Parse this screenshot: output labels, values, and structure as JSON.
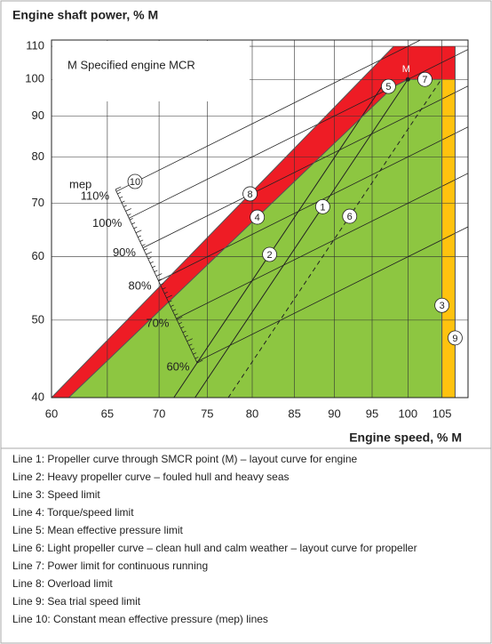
{
  "chart_data": {
    "type": "layout-diagram",
    "title": "Engine shaft power, % M",
    "x_label": "Engine speed, % M",
    "x_scale": "log",
    "y_scale": "log",
    "grid": true,
    "xlim": [
      60,
      109
    ],
    "ylim": [
      40,
      112
    ],
    "xticks": [
      60,
      65,
      70,
      75,
      80,
      85,
      90,
      95,
      100,
      105
    ],
    "yticks": [
      40,
      50,
      60,
      70,
      80,
      90,
      100,
      110
    ],
    "box_text": "M  Specified engine MCR",
    "mcr": {
      "label": "M",
      "x": 100,
      "y": 100
    },
    "regions": [
      {
        "color": "#ee1c25",
        "x": [
          60,
          98,
          107,
          107,
          100,
          98,
          61.5
        ],
        "y": [
          40,
          110,
          110,
          100,
          100,
          98,
          40
        ]
      },
      {
        "color": "#ffc20f",
        "x": [
          105,
          107,
          107,
          105
        ],
        "y": [
          40,
          40,
          100,
          100
        ]
      },
      {
        "color": "#8dc641",
        "x": [
          61.5,
          98,
          100,
          105,
          105
        ],
        "y": [
          40,
          98,
          100,
          100,
          40
        ]
      }
    ],
    "series": [
      {
        "name": "Line 1: Propeller curve through SMCR point (M) – layout curve for engine",
        "label": "1",
        "color": "#222222",
        "dash": false,
        "x": [
          73.7,
          100
        ],
        "values": [
          40,
          100
        ]
      },
      {
        "name": "Line 2: Heavy propeller curve – fouled hull and heavy seas",
        "label": "2",
        "color": "#222222",
        "dash": false,
        "x": [
          71.5,
          97
        ],
        "values": [
          40,
          100
        ]
      },
      {
        "name": "Line 3: Speed limit",
        "label": "3",
        "color": "#555555",
        "dash": false,
        "x": [
          105,
          105
        ],
        "values": [
          40,
          100
        ]
      },
      {
        "name": "Line 4: Torque/speed limit",
        "label": "4",
        "color": "#555555",
        "dash": false,
        "x": [
          61.5,
          98
        ],
        "values": [
          40,
          98
        ]
      },
      {
        "name": "Line 5: Mean effective pressure limit",
        "label": "5",
        "color": "#555555",
        "dash": false,
        "x": [
          98,
          100
        ],
        "values": [
          98,
          100
        ]
      },
      {
        "name": "Line 6: Light propeller curve – clean hull and calm weather – layout curve for propeller",
        "label": "6",
        "color": "#222222",
        "dash": true,
        "x": [
          77.3,
          104.9
        ],
        "values": [
          40,
          100
        ]
      },
      {
        "name": "Line 7: Power limit for continuous running",
        "label": "7",
        "color": "#555555",
        "dash": false,
        "x": [
          100,
          105
        ],
        "values": [
          100,
          100
        ]
      },
      {
        "name": "Line 8: Overload limit",
        "label": "8",
        "color": "#555555",
        "dash": false,
        "x": [
          60,
          98
        ],
        "values": [
          40,
          110
        ]
      },
      {
        "name": "Line 9: Sea trial speed limit",
        "label": "9",
        "color": "#555555",
        "dash": false,
        "x": [
          107,
          107
        ],
        "values": [
          40,
          110
        ]
      }
    ],
    "mep_lines": {
      "name": "Line 10: Constant mean effective pressure (mep) lines",
      "label": "10",
      "title": "mep",
      "levels": [
        {
          "value": 110,
          "label": "110%"
        },
        {
          "value": 100,
          "label": "100%"
        },
        {
          "value": 90,
          "label": "90%"
        },
        {
          "value": 80,
          "label": "80%"
        },
        {
          "value": 70,
          "label": "70%"
        },
        {
          "value": 60,
          "label": "60%"
        }
      ]
    }
  }
}
